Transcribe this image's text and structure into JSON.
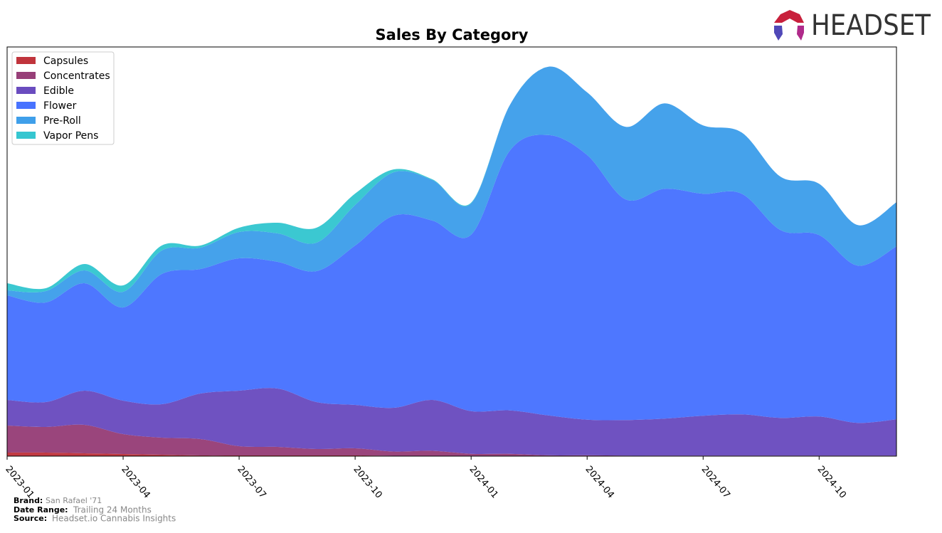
{
  "logo": "HEADSET",
  "chart_data": {
    "type": "stacked-area",
    "title": "Sales By Category",
    "categories": [
      "2023-01",
      null,
      null,
      "2023-04",
      null,
      null,
      "2023-07",
      null,
      null,
      "2023-10",
      null,
      null,
      "2024-01",
      null,
      null,
      "2024-04",
      null,
      null,
      "2024-07",
      null,
      null,
      "2024-10",
      null,
      null
    ],
    "ylim": [
      0,
      575
    ],
    "legend": "upper left",
    "series": [
      {
        "name": "Capsules",
        "color": "#c0343c",
        "values": [
          5,
          5,
          4,
          3,
          2,
          1,
          1,
          1,
          1,
          1,
          0.5,
          0.5,
          0.3,
          0.3,
          0.2,
          0.2,
          0.2,
          0.2,
          0.2,
          0.2,
          0.2,
          0.2,
          0.2,
          0.2
        ]
      },
      {
        "name": "Concentrates",
        "color": "#973f78",
        "values": [
          38,
          36,
          40,
          28,
          24,
          23,
          13,
          12,
          9,
          10,
          6,
          7,
          3,
          3,
          1,
          1,
          0.5,
          0.5,
          0.5,
          0.5,
          0.5,
          0.5,
          0.5,
          0.5
        ]
      },
      {
        "name": "Edible",
        "color": "#6a4cbf",
        "values": [
          36,
          35,
          48,
          47,
          47,
          64,
          78,
          82,
          66,
          61,
          61.5,
          71.5,
          60,
          61,
          56,
          50,
          50,
          52,
          56,
          58,
          53,
          55,
          46,
          51
        ]
      },
      {
        "name": "Flower",
        "color": "#4873ff",
        "values": [
          147,
          140,
          151,
          131,
          183,
          175,
          186,
          178,
          184,
          224,
          270,
          252,
          248,
          365,
          394,
          372,
          310,
          323,
          312,
          310,
          264,
          255,
          221,
          243
        ]
      },
      {
        "name": "Pre-Roll",
        "color": "#3f9fea",
        "values": [
          7,
          16,
          18,
          22,
          33,
          30,
          37,
          40,
          40,
          57,
          61,
          57,
          44,
          64,
          96,
          88,
          102,
          120,
          96,
          86,
          75,
          72,
          57,
          62
        ]
      },
      {
        "name": "Vapor Pens",
        "color": "#35c6d0",
        "values": [
          10,
          4,
          9,
          9,
          7,
          3,
          6,
          15,
          21,
          16,
          4,
          1,
          1,
          0,
          0,
          0,
          0,
          0,
          0,
          0,
          0,
          0,
          0,
          0
        ]
      }
    ]
  },
  "footer": {
    "brand_label": "Brand:",
    "brand": "San Rafael '71",
    "range_label": "Date Range:",
    "range": "Trailing 24 Months",
    "source_label": "Source:",
    "source": "Headset.io Cannabis Insights"
  }
}
